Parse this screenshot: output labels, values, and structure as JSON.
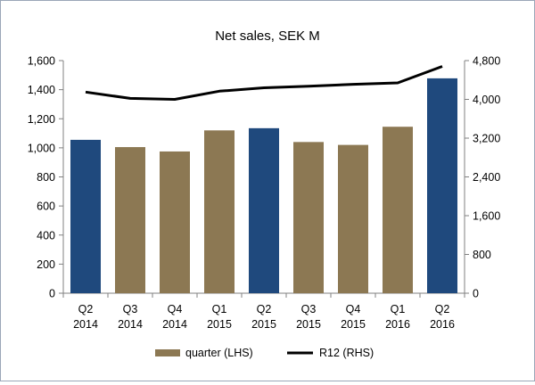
{
  "chart_data": {
    "type": "bar",
    "title": "Net sales, SEK M",
    "categories": [
      [
        "Q2",
        "2014"
      ],
      [
        "Q3",
        "2014"
      ],
      [
        "Q4",
        "2014"
      ],
      [
        "Q1",
        "2015"
      ],
      [
        "Q2",
        "2015"
      ],
      [
        "Q3",
        "2015"
      ],
      [
        "Q4",
        "2015"
      ],
      [
        "Q1",
        "2016"
      ],
      [
        "Q2",
        "2016"
      ]
    ],
    "series": [
      {
        "name": "quarter (LHS)",
        "type": "bar",
        "axis": "left",
        "values": [
          1055,
          1005,
          975,
          1120,
          1135,
          1040,
          1020,
          1145,
          1478
        ],
        "colors": [
          "#1f497d",
          "#8c7853",
          "#8c7853",
          "#8c7853",
          "#1f497d",
          "#8c7853",
          "#8c7853",
          "#8c7853",
          "#1f497d"
        ]
      },
      {
        "name": "R12 (RHS)",
        "type": "line",
        "axis": "right",
        "values": [
          4150,
          4020,
          4000,
          4170,
          4240,
          4270,
          4310,
          4340,
          4680
        ],
        "color": "#000000"
      }
    ],
    "y_left": {
      "min": 0,
      "max": 1600,
      "ticks": [
        "0",
        "200",
        "400",
        "600",
        "800",
        "1,000",
        "1,200",
        "1,400",
        "1,600"
      ]
    },
    "y_right": {
      "min": 0,
      "max": 4800,
      "ticks": [
        "0",
        "800",
        "1,600",
        "2,400",
        "3,200",
        "4,000",
        "4,800"
      ]
    },
    "legend": {
      "position": "bottom",
      "entries": [
        "quarter (LHS)",
        "R12 (RHS)"
      ],
      "swatch_color": "#8c7853"
    },
    "grid": false
  }
}
